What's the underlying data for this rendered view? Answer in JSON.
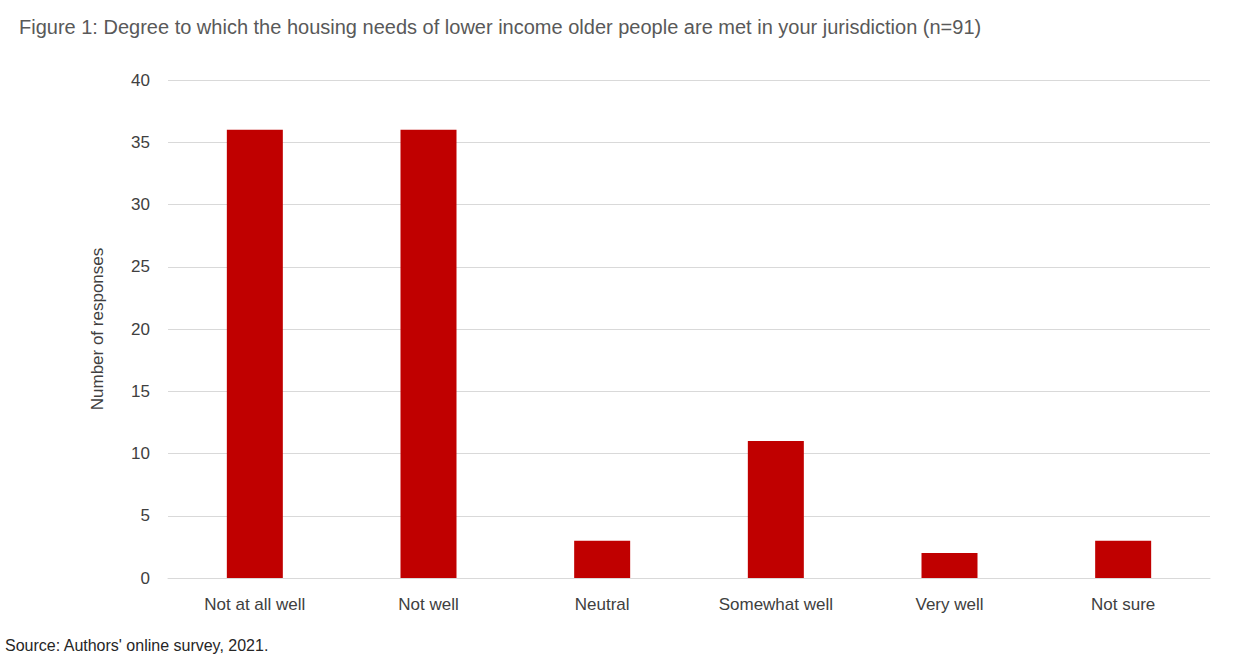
{
  "chart_data": {
    "type": "bar",
    "title": "Figure 1: Degree to which the housing needs of lower income older people are met in your jurisdiction (n=91)",
    "y_label": "Number of responses",
    "source": "Source: Authors' online survey, 2021.",
    "categories": [
      "Not at all well",
      "Not well",
      "Neutral",
      "Somewhat well",
      "Very well",
      "Not sure"
    ],
    "values": [
      36,
      36,
      3,
      11,
      2,
      3
    ],
    "color": "#c00000",
    "ylim": [
      0,
      40
    ],
    "yticks": [
      0,
      5,
      10,
      15,
      20,
      25,
      30,
      35,
      40
    ],
    "grid": true
  }
}
